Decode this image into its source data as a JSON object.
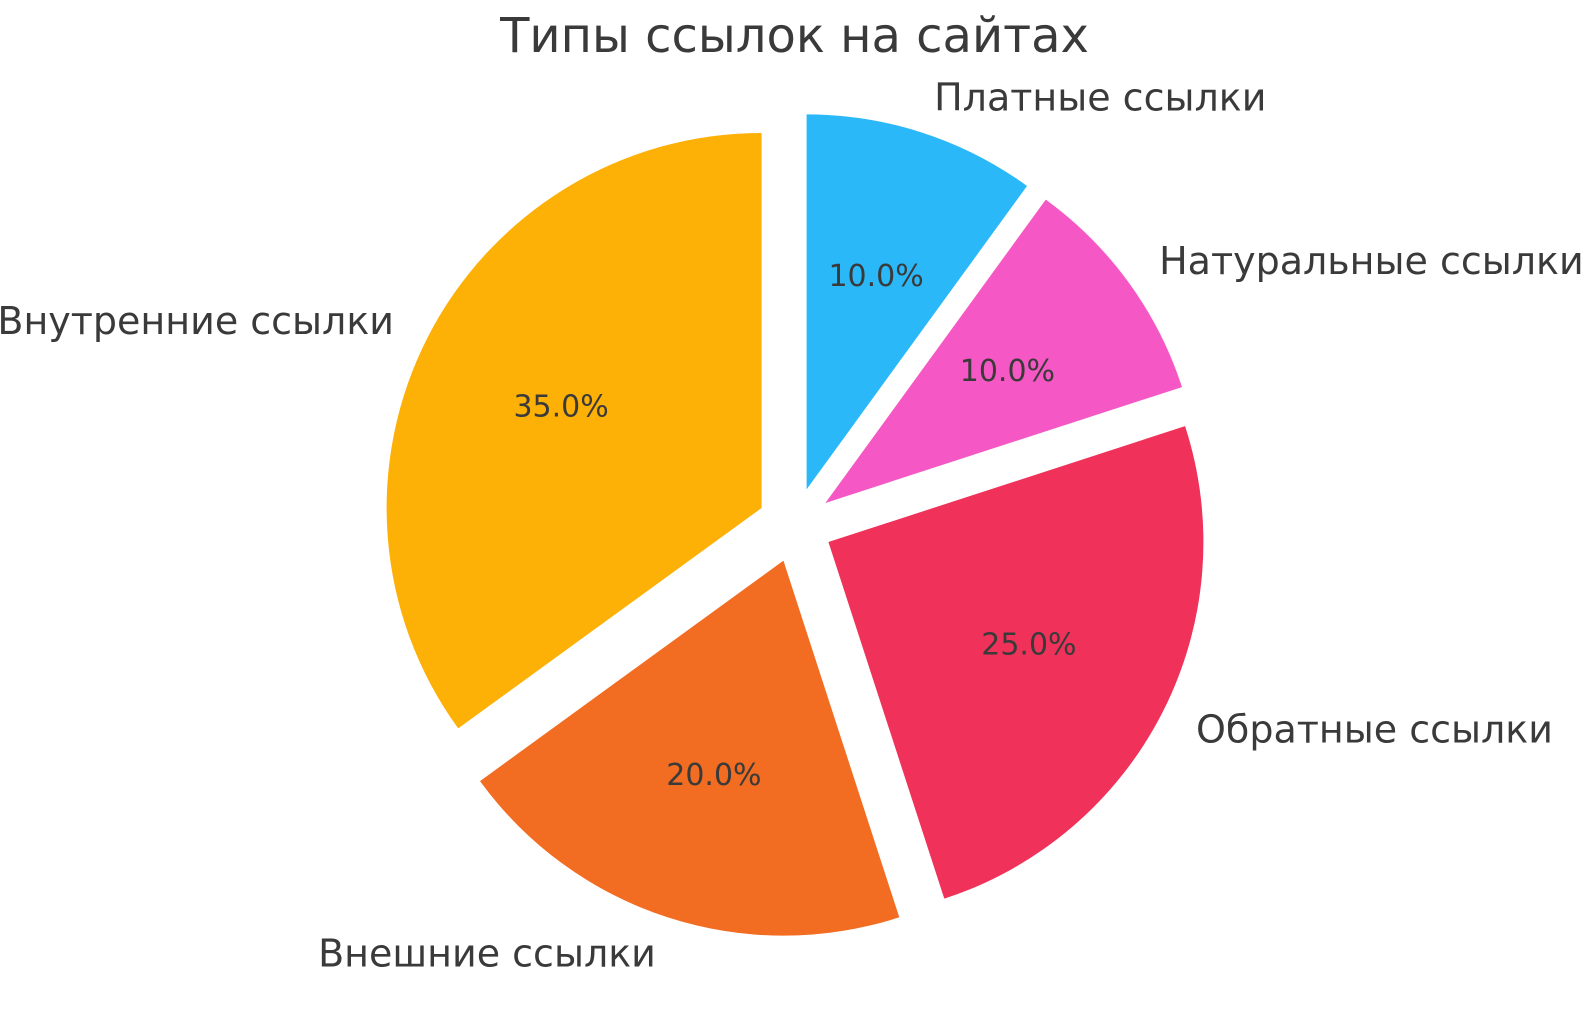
{
  "chart_data": {
    "type": "pie",
    "title": "Типы ссылок на сайтах",
    "labels": [
      "Платные ссылки",
      "Натуральные ссылки",
      "Обратные ссылки",
      "Внешние ссылки",
      "Внутренние ссылки"
    ],
    "values": [
      10.0,
      10.0,
      25.0,
      20.0,
      35.0
    ],
    "pct_labels": [
      "10.0%",
      "10.0%",
      "25.0%",
      "20.0%",
      "35.0%"
    ],
    "colors": [
      "#2BB8F9",
      "#F558C4",
      "#F0325A",
      "#F26C21",
      "#FDB005"
    ],
    "start_angle": 90,
    "counterclock": false,
    "explode": 0.1,
    "pct_distance": 0.6,
    "label_distance": 1.1,
    "text_color": "#3A3A3A",
    "background": "#FFFFFF",
    "legend": "none",
    "grid": "off"
  }
}
